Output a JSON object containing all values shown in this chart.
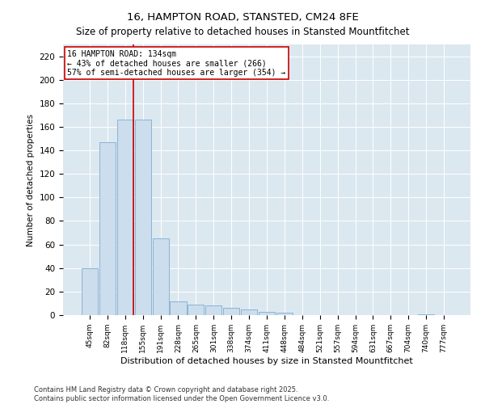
{
  "title": "16, HAMPTON ROAD, STANSTED, CM24 8FE",
  "subtitle": "Size of property relative to detached houses in Stansted Mountfitchet",
  "xlabel": "Distribution of detached houses by size in Stansted Mountfitchet",
  "ylabel": "Number of detached properties",
  "categories": [
    "45sqm",
    "82sqm",
    "118sqm",
    "155sqm",
    "191sqm",
    "228sqm",
    "265sqm",
    "301sqm",
    "338sqm",
    "374sqm",
    "411sqm",
    "448sqm",
    "484sqm",
    "521sqm",
    "557sqm",
    "594sqm",
    "631sqm",
    "667sqm",
    "704sqm",
    "740sqm",
    "777sqm"
  ],
  "values": [
    40,
    147,
    166,
    166,
    65,
    12,
    9,
    8,
    6,
    5,
    3,
    2,
    0,
    0,
    0,
    0,
    0,
    0,
    0,
    1,
    0
  ],
  "bar_color": "#ccdded",
  "bar_edge_color": "#8ab4d4",
  "vline_x": 2.45,
  "vline_color": "#cc0000",
  "annotation_text": "16 HAMPTON ROAD: 134sqm\n← 43% of detached houses are smaller (266)\n57% of semi-detached houses are larger (354) →",
  "annotation_box_color": "#ffffff",
  "annotation_box_edge": "#cc0000",
  "ylim": [
    0,
    230
  ],
  "yticks": [
    0,
    20,
    40,
    60,
    80,
    100,
    120,
    140,
    160,
    180,
    200,
    220
  ],
  "bg_color": "#dce8f0",
  "footer": "Contains HM Land Registry data © Crown copyright and database right 2025.\nContains public sector information licensed under the Open Government Licence v3.0.",
  "title_fontsize": 9.5,
  "subtitle_fontsize": 8.5,
  "figwidth": 6.0,
  "figheight": 5.0,
  "dpi": 100
}
